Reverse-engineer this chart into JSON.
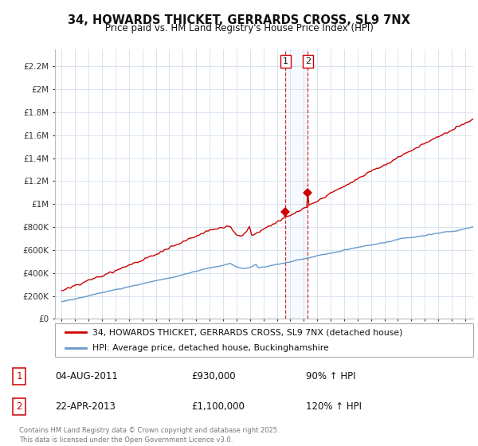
{
  "title_line1": "34, HOWARDS THICKET, GERRARDS CROSS, SL9 7NX",
  "title_line2": "Price paid vs. HM Land Registry's House Price Index (HPI)",
  "background_color": "#ffffff",
  "plot_bg_color": "#ffffff",
  "grid_color": "#d8e4f0",
  "red_line_color": "#cc0000",
  "blue_line_color": "#6699cc",
  "legend_entry1": "34, HOWARDS THICKET, GERRARDS CROSS, SL9 7NX (detached house)",
  "legend_entry2": "HPI: Average price, detached house, Buckinghamshire",
  "annotation1_num": "1",
  "annotation1_date": "04-AUG-2011",
  "annotation1_price": "£930,000",
  "annotation1_hpi": "90% ↑ HPI",
  "annotation2_num": "2",
  "annotation2_date": "22-APR-2013",
  "annotation2_price": "£1,100,000",
  "annotation2_hpi": "120% ↑ HPI",
  "footer": "Contains HM Land Registry data © Crown copyright and database right 2025.\nThis data is licensed under the Open Government Licence v3.0.",
  "ylim_max": 2350000,
  "ylabel_ticks": [
    0,
    200000,
    400000,
    600000,
    800000,
    1000000,
    1200000,
    1400000,
    1600000,
    1800000,
    2000000,
    2200000
  ],
  "ylabel_labels": [
    "£0",
    "£200K",
    "£400K",
    "£600K",
    "£800K",
    "£1M",
    "£1.2M",
    "£1.4M",
    "£1.6M",
    "£1.8M",
    "£2M",
    "£2.2M"
  ],
  "t1_year": 2011.625,
  "t2_year": 2013.292,
  "t1_red_val": 930000,
  "t2_red_val": 1100000,
  "xmin": 1994.5,
  "xmax": 2025.6
}
